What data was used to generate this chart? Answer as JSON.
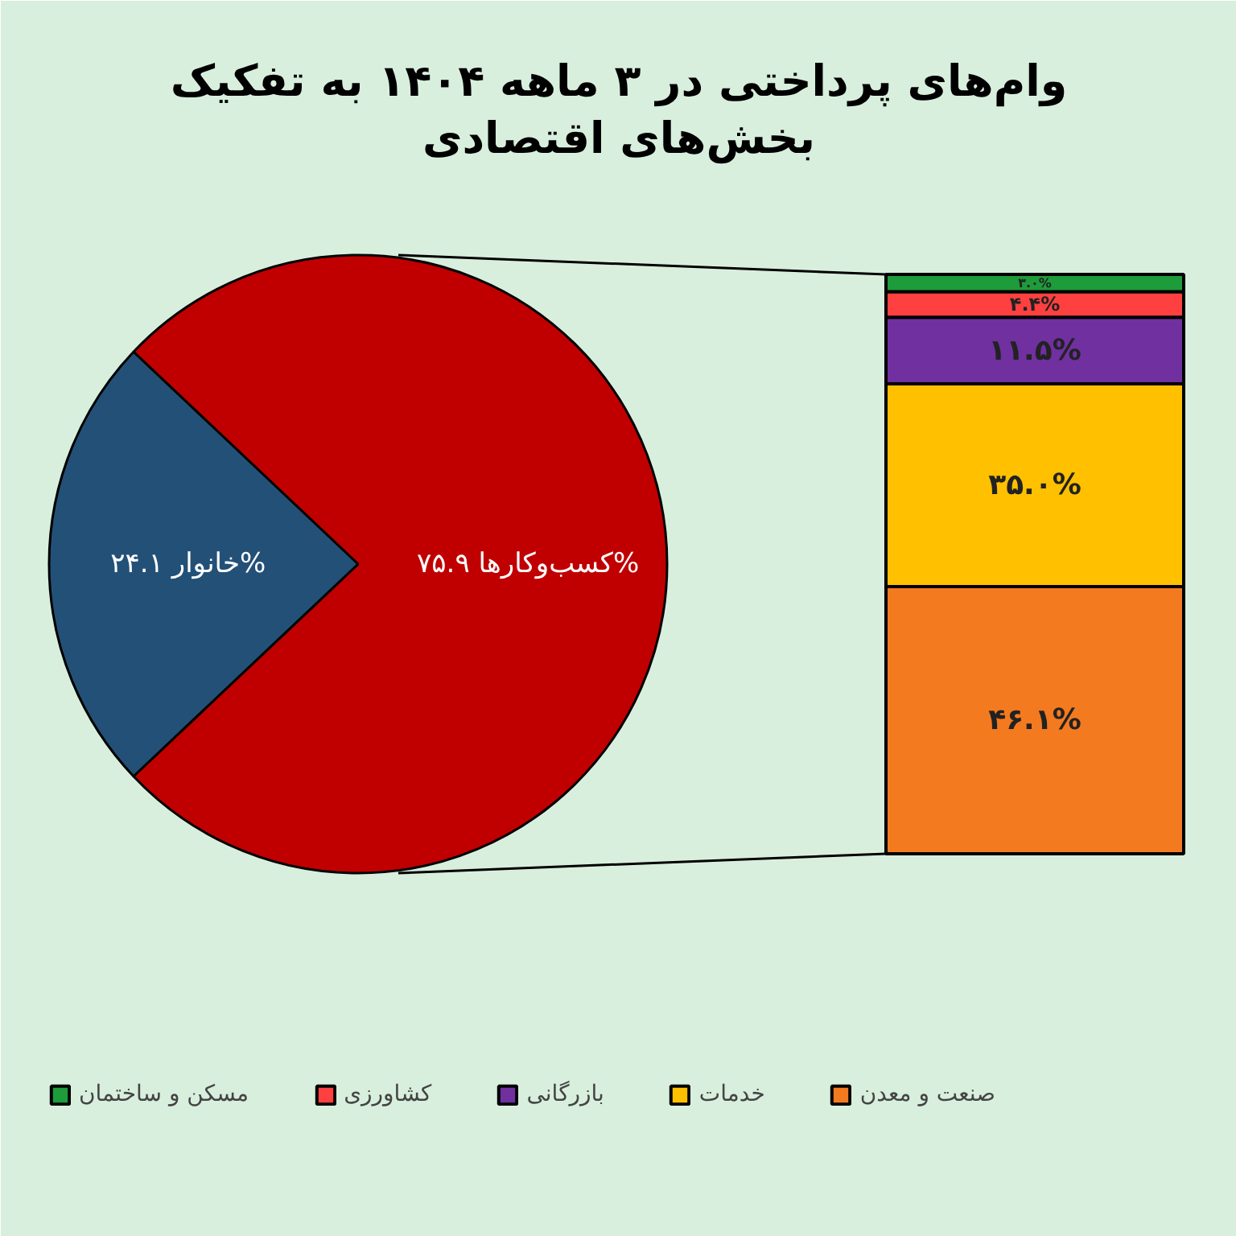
{
  "chart_data": [
    {
      "type": "pie",
      "title": "وام‌های پرداختی در ۳ ماهه ۱۴۰۴ به تفکیک\nبخش‌های اقتصادی",
      "categories": [
        "کسب‌وکارها",
        "خانوار"
      ],
      "values": [
        75.9,
        24.1
      ],
      "value_labels": [
        "۷۵.۹%",
        "۲۴.۱%"
      ],
      "colors": [
        "#c00000",
        "#235077"
      ]
    },
    {
      "type": "bar",
      "stacked": true,
      "categories": [
        null
      ],
      "legend": "bottom",
      "series": [
        {
          "name": "صنعت و معدن",
          "color": "#f47a20",
          "values": [
            46.1
          ],
          "value_labels": [
            "۴۶.۱%"
          ]
        },
        {
          "name": "خدمات",
          "color": "#ffc000",
          "values": [
            35.0
          ],
          "value_labels": [
            "۳۵.۰%"
          ]
        },
        {
          "name": "بازرگانی",
          "color": "#7030a0",
          "values": [
            11.5
          ],
          "value_labels": [
            "۱۱.۵%"
          ]
        },
        {
          "name": "کشاورزی",
          "color": "#ff4040",
          "values": [
            4.4
          ],
          "value_labels": [
            "۴.۴%"
          ]
        },
        {
          "name": "مسکن و ساختمان",
          "color": "#1e9b3a",
          "values": [
            3.0
          ],
          "value_labels": [
            "۳.۰%"
          ]
        }
      ]
    }
  ]
}
